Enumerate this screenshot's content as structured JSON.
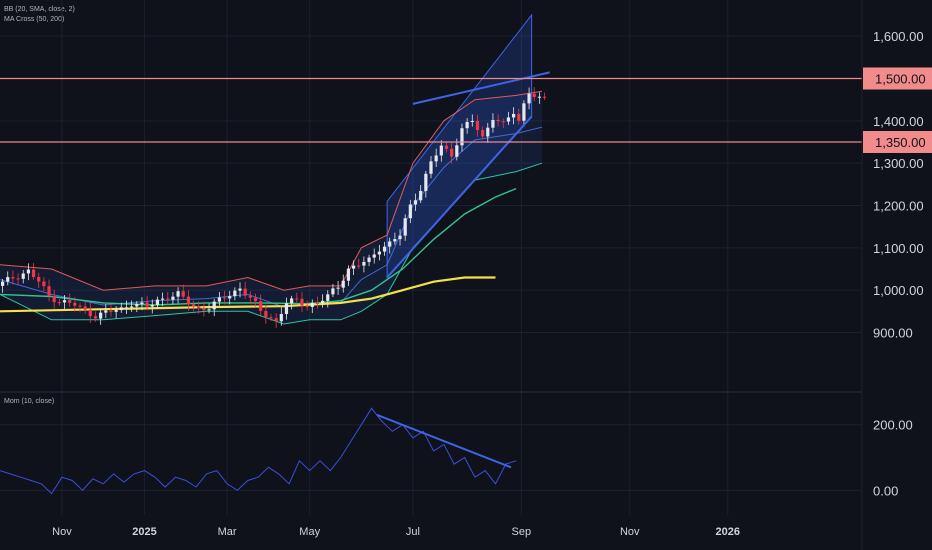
{
  "indicators": {
    "bb_label": "BB (20, SMA, close, 2)",
    "ma_label": "MA Cross (50, 200)",
    "mom_label": "Mom (10, close)"
  },
  "colors": {
    "background": "#0f121b",
    "grid": "#1b2030",
    "axis_text": "#d1d4dc",
    "candle_up": "#e6e8ee",
    "candle_down": "#f23645",
    "bb_upper": "#e05a5a",
    "bb_lower": "#2ec4a6",
    "bb_basis": "#3f6bd8",
    "ma50": "#35c48c",
    "ma200": "#f4e04a",
    "channel": "#3e64e6",
    "hline": "#f08a8a",
    "badge": "#f28b8b",
    "momentum": "#3b4fd9"
  },
  "chart_data": [
    {
      "type": "candlestick",
      "title": "",
      "x_ticks": [
        "Nov",
        "2025",
        "Mar",
        "May",
        "Jul",
        "Sep",
        "Nov",
        "2026"
      ],
      "y_ticks": [
        900,
        1000,
        1100,
        1200,
        1300,
        1400,
        1500,
        1600
      ],
      "ylim": [
        835,
        1650
      ],
      "grid": false,
      "horizontal_levels": [
        {
          "value": 1500,
          "label": "1,500.00"
        },
        {
          "value": 1350,
          "label": "1,350.00"
        }
      ],
      "price_path": [
        [
          0,
          1010
        ],
        [
          3,
          1030
        ],
        [
          6,
          1045
        ],
        [
          8,
          1020
        ],
        [
          10,
          985
        ],
        [
          12,
          975
        ],
        [
          15,
          965
        ],
        [
          17,
          950
        ],
        [
          19,
          940
        ],
        [
          22,
          950
        ],
        [
          24,
          955
        ],
        [
          26,
          970
        ],
        [
          29,
          960
        ],
        [
          31,
          975
        ],
        [
          33,
          985
        ],
        [
          35,
          990
        ],
        [
          37,
          970
        ],
        [
          39,
          955
        ],
        [
          41,
          960
        ],
        [
          43,
          975
        ],
        [
          45,
          990
        ],
        [
          47,
          1005
        ],
        [
          49,
          980
        ],
        [
          51,
          950
        ],
        [
          53,
          935
        ],
        [
          54,
          925
        ],
        [
          56,
          970
        ],
        [
          58,
          975
        ],
        [
          60,
          965
        ],
        [
          62,
          970
        ],
        [
          64,
          985
        ],
        [
          66,
          1010
        ],
        [
          68,
          1050
        ],
        [
          70,
          1060
        ],
        [
          72,
          1070
        ],
        [
          74,
          1100
        ],
        [
          76,
          1110
        ],
        [
          78,
          1130
        ],
        [
          80,
          1200
        ],
        [
          82,
          1240
        ],
        [
          84,
          1300
        ],
        [
          86,
          1340
        ],
        [
          88,
          1320
        ],
        [
          90,
          1380
        ],
        [
          92,
          1400
        ],
        [
          94,
          1360
        ],
        [
          96,
          1410
        ],
        [
          98,
          1390
        ],
        [
          100,
          1420
        ],
        [
          101,
          1400
        ],
        [
          102,
          1440
        ],
        [
          103,
          1470
        ],
        [
          104,
          1460
        ],
        [
          105,
          1450
        ]
      ],
      "bollinger_bands": {
        "upper": [
          [
            0,
            1060
          ],
          [
            10,
            1050
          ],
          [
            20,
            1000
          ],
          [
            30,
            1010
          ],
          [
            40,
            1010
          ],
          [
            48,
            1030
          ],
          [
            55,
            1000
          ],
          [
            60,
            1010
          ],
          [
            66,
            1010
          ],
          [
            70,
            1100
          ],
          [
            75,
            1130
          ],
          [
            80,
            1300
          ],
          [
            86,
            1400
          ],
          [
            92,
            1450
          ],
          [
            100,
            1460
          ],
          [
            105,
            1470
          ]
        ],
        "lower": [
          [
            0,
            990
          ],
          [
            10,
            930
          ],
          [
            20,
            930
          ],
          [
            30,
            940
          ],
          [
            40,
            950
          ],
          [
            48,
            950
          ],
          [
            55,
            920
          ],
          [
            60,
            930
          ],
          [
            66,
            930
          ],
          [
            70,
            950
          ],
          [
            75,
            990
          ],
          [
            80,
            1100
          ],
          [
            86,
            1180
          ],
          [
            92,
            1260
          ],
          [
            100,
            1280
          ],
          [
            105,
            1300
          ]
        ],
        "basis": [
          [
            0,
            1025
          ],
          [
            10,
            990
          ],
          [
            20,
            965
          ],
          [
            30,
            975
          ],
          [
            40,
            980
          ],
          [
            48,
            990
          ],
          [
            55,
            960
          ],
          [
            60,
            970
          ],
          [
            66,
            970
          ],
          [
            70,
            1025
          ],
          [
            75,
            1060
          ],
          [
            80,
            1200
          ],
          [
            86,
            1290
          ],
          [
            92,
            1355
          ],
          [
            100,
            1370
          ],
          [
            105,
            1385
          ]
        ]
      },
      "ma50": [
        [
          0,
          990
        ],
        [
          10,
          985
        ],
        [
          20,
          970
        ],
        [
          30,
          965
        ],
        [
          40,
          970
        ],
        [
          50,
          970
        ],
        [
          60,
          968
        ],
        [
          66,
          975
        ],
        [
          72,
          1000
        ],
        [
          78,
          1050
        ],
        [
          84,
          1120
        ],
        [
          90,
          1180
        ],
        [
          96,
          1220
        ],
        [
          100,
          1240
        ]
      ],
      "ma200": [
        [
          0,
          950
        ],
        [
          20,
          955
        ],
        [
          40,
          960
        ],
        [
          55,
          962
        ],
        [
          66,
          970
        ],
        [
          72,
          980
        ],
        [
          78,
          1000
        ],
        [
          84,
          1020
        ],
        [
          90,
          1030
        ],
        [
          96,
          1030
        ]
      ],
      "channel": {
        "lower_line": [
          [
            75,
            1030
          ],
          [
            103,
            1410
          ]
        ],
        "upper_line": [
          [
            75,
            1210
          ],
          [
            103,
            1650
          ]
        ],
        "resistance_line": [
          [
            80,
            1440
          ],
          [
            103,
            1505
          ]
        ]
      }
    },
    {
      "type": "line",
      "title": "Mom (10, close)",
      "y_ticks": [
        0,
        200
      ],
      "ylim": [
        -60,
        260
      ],
      "values": [
        [
          0,
          60
        ],
        [
          2,
          50
        ],
        [
          4,
          40
        ],
        [
          6,
          30
        ],
        [
          8,
          20
        ],
        [
          10,
          -10
        ],
        [
          12,
          40
        ],
        [
          14,
          30
        ],
        [
          16,
          0
        ],
        [
          18,
          35
        ],
        [
          20,
          20
        ],
        [
          22,
          50
        ],
        [
          24,
          25
        ],
        [
          26,
          50
        ],
        [
          28,
          60
        ],
        [
          30,
          40
        ],
        [
          32,
          10
        ],
        [
          34,
          40
        ],
        [
          36,
          30
        ],
        [
          38,
          10
        ],
        [
          40,
          50
        ],
        [
          42,
          60
        ],
        [
          44,
          20
        ],
        [
          46,
          0
        ],
        [
          48,
          30
        ],
        [
          50,
          40
        ],
        [
          52,
          70
        ],
        [
          54,
          50
        ],
        [
          56,
          20
        ],
        [
          58,
          90
        ],
        [
          60,
          60
        ],
        [
          62,
          90
        ],
        [
          64,
          60
        ],
        [
          66,
          100
        ],
        [
          68,
          150
        ],
        [
          70,
          200
        ],
        [
          72,
          250
        ],
        [
          74,
          210
        ],
        [
          76,
          180
        ],
        [
          78,
          200
        ],
        [
          80,
          160
        ],
        [
          82,
          180
        ],
        [
          84,
          120
        ],
        [
          86,
          140
        ],
        [
          88,
          80
        ],
        [
          90,
          100
        ],
        [
          92,
          40
        ],
        [
          94,
          60
        ],
        [
          96,
          20
        ],
        [
          98,
          80
        ],
        [
          100,
          90
        ]
      ],
      "trend_line": [
        [
          73,
          230
        ],
        [
          99,
          70
        ]
      ]
    }
  ],
  "right_axis": {
    "main_labels": [
      "1,600.00",
      "1,500.00",
      "1,400.00",
      "1,350.00",
      "1,300.00",
      "1,200.00",
      "1,100.00",
      "1,000.00",
      "900.00"
    ],
    "momentum_labels": [
      "200.00",
      "0.00"
    ]
  }
}
